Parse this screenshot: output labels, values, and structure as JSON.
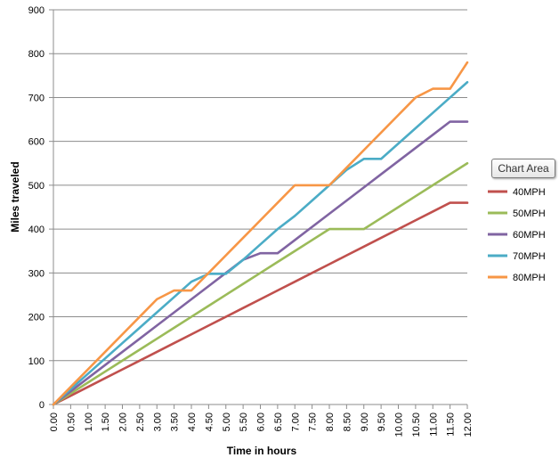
{
  "chart_data": {
    "type": "line",
    "title": "",
    "xlabel": "Time in hours",
    "ylabel": "Miles traveled",
    "ylim": [
      0,
      900
    ],
    "yticks": [
      0,
      100,
      200,
      300,
      400,
      500,
      600,
      700,
      800,
      900
    ],
    "grid": "horizontal",
    "legend_position": "right",
    "x": [
      "0.00",
      "0.50",
      "1.00",
      "1.50",
      "2.00",
      "2.50",
      "3.00",
      "3.50",
      "4.00",
      "4.50",
      "5.00",
      "5.50",
      "6.00",
      "6.50",
      "7.00",
      "7.50",
      "8.00",
      "8.50",
      "9.00",
      "9.50",
      "10.00",
      "10.50",
      "11.00",
      "11.50",
      "12.00"
    ],
    "series": [
      {
        "name": "40MPH",
        "color": "#C0504D",
        "values": [
          0,
          20,
          40,
          60,
          80,
          100,
          120,
          140,
          160,
          180,
          200,
          220,
          240,
          260,
          280,
          300,
          320,
          340,
          360,
          380,
          400,
          420,
          440,
          460,
          460
        ]
      },
      {
        "name": "50MPH",
        "color": "#9BBB59",
        "values": [
          0,
          25,
          50,
          75,
          100,
          125,
          150,
          175,
          200,
          225,
          250,
          275,
          300,
          325,
          350,
          375,
          400,
          400,
          400,
          425,
          450,
          475,
          500,
          525,
          550
        ]
      },
      {
        "name": "60MPH",
        "color": "#8064A2",
        "values": [
          0,
          30,
          60,
          90,
          120,
          150,
          180,
          210,
          240,
          270,
          300,
          330,
          345,
          345,
          375,
          405,
          435,
          465,
          495,
          525,
          555,
          585,
          615,
          645,
          645
        ]
      },
      {
        "name": "70MPH",
        "color": "#4BACC6",
        "values": [
          0,
          35,
          70,
          105,
          140,
          175,
          210,
          245,
          280,
          298,
          298,
          330,
          365,
          400,
          430,
          465,
          500,
          535,
          560,
          560,
          595,
          630,
          665,
          700,
          735
        ]
      },
      {
        "name": "80MPH",
        "color": "#F79646",
        "values": [
          0,
          40,
          80,
          120,
          160,
          200,
          240,
          260,
          260,
          300,
          340,
          380,
          420,
          460,
          500,
          500,
          500,
          540,
          580,
          620,
          660,
          700,
          720,
          720,
          780
        ]
      }
    ]
  },
  "tooltip": {
    "label": "Chart Area"
  }
}
